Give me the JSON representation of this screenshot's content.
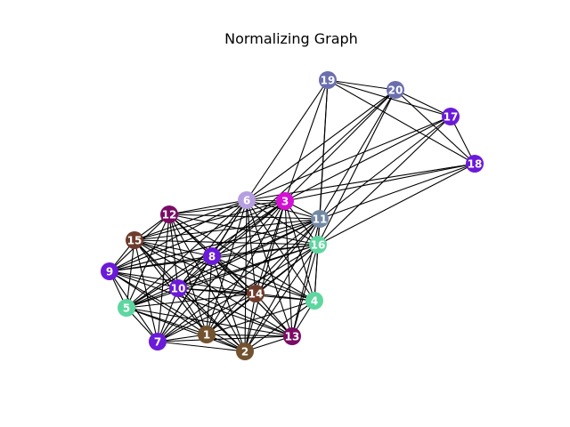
{
  "title": "Normalizing Graph",
  "colors": {
    "brown": "#72522f",
    "violet": "#6a1ad8",
    "mint": "#5fd6a0",
    "magenta": "#d60fd6",
    "slate": "#6a6eae",
    "steel": "#7389a3",
    "lavender": "#b69ee0",
    "plum": "#7a0c66",
    "rust": "#6e3c2c",
    "edge": "#000000"
  },
  "nodes": [
    {
      "id": "1",
      "label": "1",
      "color": "brown"
    },
    {
      "id": "2",
      "label": "2",
      "color": "brown"
    },
    {
      "id": "3",
      "label": "3",
      "color": "magenta"
    },
    {
      "id": "4",
      "label": "4",
      "color": "mint"
    },
    {
      "id": "5",
      "label": "5",
      "color": "mint"
    },
    {
      "id": "6",
      "label": "6",
      "color": "lavender"
    },
    {
      "id": "7",
      "label": "7",
      "color": "violet"
    },
    {
      "id": "8",
      "label": "8",
      "color": "violet"
    },
    {
      "id": "9",
      "label": "9",
      "color": "violet"
    },
    {
      "id": "10",
      "label": "10",
      "color": "violet"
    },
    {
      "id": "11",
      "label": "11",
      "color": "steel"
    },
    {
      "id": "12",
      "label": "12",
      "color": "plum"
    },
    {
      "id": "13",
      "label": "13",
      "color": "plum"
    },
    {
      "id": "14",
      "label": "14",
      "color": "rust"
    },
    {
      "id": "15",
      "label": "15",
      "color": "rust"
    },
    {
      "id": "16",
      "label": "16",
      "color": "mint"
    },
    {
      "id": "17",
      "label": "17",
      "color": "violet"
    },
    {
      "id": "18",
      "label": "18",
      "color": "violet"
    },
    {
      "id": "19",
      "label": "19",
      "color": "slate"
    },
    {
      "id": "20",
      "label": "20",
      "color": "slate"
    }
  ],
  "edges": [
    [
      "19",
      "20"
    ],
    [
      "19",
      "17"
    ],
    [
      "19",
      "18"
    ],
    [
      "20",
      "17"
    ],
    [
      "20",
      "18"
    ],
    [
      "17",
      "18"
    ],
    [
      "19",
      "6"
    ],
    [
      "19",
      "3"
    ],
    [
      "19",
      "11"
    ],
    [
      "19",
      "16"
    ],
    [
      "20",
      "6"
    ],
    [
      "20",
      "3"
    ],
    [
      "20",
      "11"
    ],
    [
      "20",
      "16"
    ],
    [
      "20",
      "8"
    ],
    [
      "17",
      "6"
    ],
    [
      "17",
      "3"
    ],
    [
      "17",
      "11"
    ],
    [
      "17",
      "16"
    ],
    [
      "18",
      "6"
    ],
    [
      "18",
      "3"
    ],
    [
      "18",
      "11"
    ],
    [
      "18",
      "16"
    ],
    [
      "6",
      "3"
    ],
    [
      "6",
      "11"
    ],
    [
      "6",
      "16"
    ],
    [
      "3",
      "11"
    ],
    [
      "3",
      "16"
    ],
    [
      "11",
      "16"
    ],
    [
      "6",
      "12"
    ],
    [
      "6",
      "15"
    ],
    [
      "6",
      "9"
    ],
    [
      "6",
      "8"
    ],
    [
      "6",
      "10"
    ],
    [
      "6",
      "5"
    ],
    [
      "6",
      "7"
    ],
    [
      "6",
      "1"
    ],
    [
      "6",
      "2"
    ],
    [
      "6",
      "14"
    ],
    [
      "6",
      "13"
    ],
    [
      "6",
      "4"
    ],
    [
      "3",
      "12"
    ],
    [
      "3",
      "15"
    ],
    [
      "3",
      "9"
    ],
    [
      "3",
      "8"
    ],
    [
      "3",
      "10"
    ],
    [
      "3",
      "5"
    ],
    [
      "3",
      "7"
    ],
    [
      "3",
      "1"
    ],
    [
      "3",
      "2"
    ],
    [
      "3",
      "14"
    ],
    [
      "3",
      "13"
    ],
    [
      "3",
      "4"
    ],
    [
      "11",
      "12"
    ],
    [
      "11",
      "15"
    ],
    [
      "11",
      "9"
    ],
    [
      "11",
      "8"
    ],
    [
      "11",
      "10"
    ],
    [
      "11",
      "5"
    ],
    [
      "11",
      "7"
    ],
    [
      "11",
      "1"
    ],
    [
      "11",
      "2"
    ],
    [
      "11",
      "14"
    ],
    [
      "11",
      "13"
    ],
    [
      "11",
      "4"
    ],
    [
      "16",
      "12"
    ],
    [
      "16",
      "15"
    ],
    [
      "16",
      "9"
    ],
    [
      "16",
      "8"
    ],
    [
      "16",
      "10"
    ],
    [
      "16",
      "5"
    ],
    [
      "16",
      "7"
    ],
    [
      "16",
      "1"
    ],
    [
      "16",
      "2"
    ],
    [
      "16",
      "14"
    ],
    [
      "16",
      "13"
    ],
    [
      "16",
      "4"
    ],
    [
      "12",
      "15"
    ],
    [
      "12",
      "9"
    ],
    [
      "12",
      "8"
    ],
    [
      "12",
      "10"
    ],
    [
      "12",
      "5"
    ],
    [
      "12",
      "7"
    ],
    [
      "12",
      "1"
    ],
    [
      "12",
      "2"
    ],
    [
      "12",
      "14"
    ],
    [
      "12",
      "13"
    ],
    [
      "12",
      "4"
    ],
    [
      "15",
      "9"
    ],
    [
      "15",
      "8"
    ],
    [
      "15",
      "10"
    ],
    [
      "15",
      "5"
    ],
    [
      "15",
      "7"
    ],
    [
      "15",
      "1"
    ],
    [
      "15",
      "2"
    ],
    [
      "15",
      "14"
    ],
    [
      "15",
      "13"
    ],
    [
      "15",
      "4"
    ],
    [
      "9",
      "8"
    ],
    [
      "9",
      "10"
    ],
    [
      "9",
      "5"
    ],
    [
      "9",
      "7"
    ],
    [
      "9",
      "1"
    ],
    [
      "9",
      "2"
    ],
    [
      "9",
      "14"
    ],
    [
      "9",
      "13"
    ],
    [
      "8",
      "10"
    ],
    [
      "8",
      "5"
    ],
    [
      "8",
      "7"
    ],
    [
      "8",
      "1"
    ],
    [
      "8",
      "2"
    ],
    [
      "8",
      "14"
    ],
    [
      "8",
      "13"
    ],
    [
      "8",
      "4"
    ],
    [
      "10",
      "5"
    ],
    [
      "10",
      "7"
    ],
    [
      "10",
      "1"
    ],
    [
      "10",
      "2"
    ],
    [
      "10",
      "14"
    ],
    [
      "10",
      "13"
    ],
    [
      "10",
      "4"
    ],
    [
      "5",
      "7"
    ],
    [
      "5",
      "1"
    ],
    [
      "5",
      "2"
    ],
    [
      "5",
      "14"
    ],
    [
      "5",
      "13"
    ],
    [
      "7",
      "1"
    ],
    [
      "7",
      "2"
    ],
    [
      "7",
      "14"
    ],
    [
      "7",
      "13"
    ],
    [
      "1",
      "2"
    ],
    [
      "1",
      "14"
    ],
    [
      "1",
      "13"
    ],
    [
      "1",
      "4"
    ],
    [
      "2",
      "14"
    ],
    [
      "2",
      "13"
    ],
    [
      "2",
      "4"
    ],
    [
      "14",
      "13"
    ],
    [
      "14",
      "4"
    ],
    [
      "13",
      "4"
    ]
  ]
}
